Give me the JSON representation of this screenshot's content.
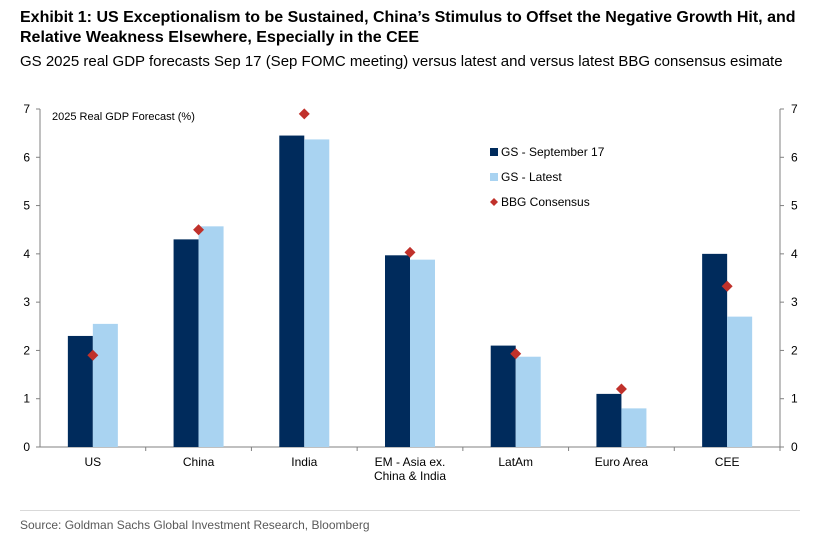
{
  "header": {
    "title": "Exhibit 1: US Exceptionalism to be Sustained, China’s Stimulus to Offset the Negative Growth Hit, and Relative Weakness Elsewhere, Especially in the CEE",
    "subtitle": "GS 2025 real GDP forecasts Sep 17 (Sep FOMC meeting) versus latest and versus latest BBG consensus esimate"
  },
  "footer": {
    "source": "Source: Goldman Sachs Global Investment Research, Bloomberg"
  },
  "chart_data": {
    "type": "bar",
    "title": "",
    "ylabel": "2025 Real GDP Forecast (%)",
    "ylim": [
      0,
      7
    ],
    "yticks": [
      0,
      1,
      2,
      3,
      4,
      5,
      6,
      7
    ],
    "grid": false,
    "legend_placement": "top-right",
    "secondary_y_axis": true,
    "categories": [
      "US",
      "China",
      "India",
      "EM - Asia ex. China & India",
      "LatAm",
      "Euro Area",
      "CEE"
    ],
    "category_labels": [
      [
        "US"
      ],
      [
        "China"
      ],
      [
        "India"
      ],
      [
        "EM - Asia ex.",
        "China & India"
      ],
      [
        "LatAm"
      ],
      [
        "Euro Area"
      ],
      [
        "CEE"
      ]
    ],
    "series": [
      {
        "name": "GS - September 17",
        "type": "bar",
        "color": "#002b5c",
        "values": [
          2.3,
          4.3,
          6.45,
          3.97,
          2.1,
          1.1,
          4.0
        ]
      },
      {
        "name": "GS - Latest",
        "type": "bar",
        "color": "#a9d3f1",
        "values": [
          2.55,
          4.57,
          6.37,
          3.88,
          1.87,
          0.8,
          2.7
        ]
      },
      {
        "name": "BBG Consensus",
        "type": "marker",
        "color": "#c0312b",
        "values": [
          1.9,
          4.5,
          6.9,
          4.03,
          1.93,
          1.2,
          3.33
        ]
      }
    ]
  }
}
